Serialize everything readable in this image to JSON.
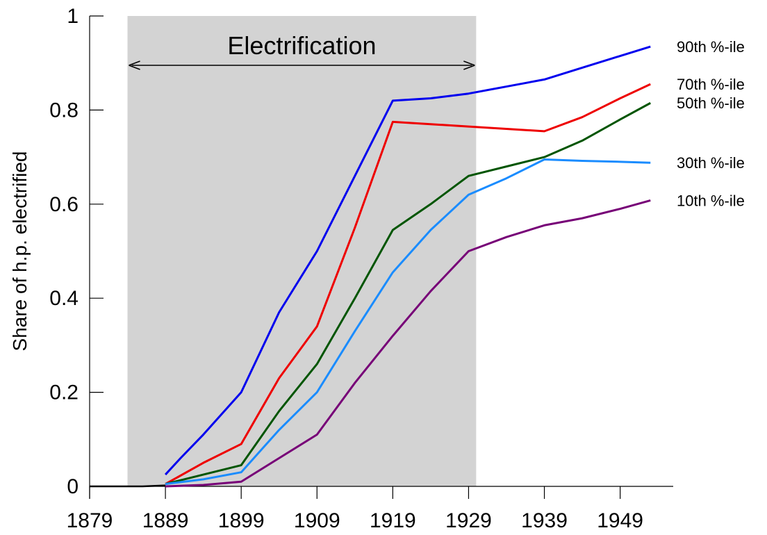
{
  "chart_data": {
    "type": "line",
    "title": "",
    "xlabel": "",
    "ylabel": "Share of h.p. electrified",
    "xlim": [
      1879,
      1956
    ],
    "ylim": [
      0,
      1
    ],
    "x_ticks": [
      1879,
      1889,
      1899,
      1909,
      1919,
      1929,
      1939,
      1949
    ],
    "y_ticks": [
      {
        "value": 0,
        "label": "0"
      },
      {
        "value": 0.2,
        "label": "0.2"
      },
      {
        "value": 0.4,
        "label": "0.4"
      },
      {
        "value": 0.6,
        "label": "0.6"
      },
      {
        "value": 0.8,
        "label": "0.8"
      },
      {
        "value": 1,
        "label": "1"
      }
    ],
    "grid": false,
    "legend": "inline-right",
    "shaded_band": {
      "x_start": 1884,
      "x_end": 1930,
      "label": "Electrification",
      "color": "#d3d3d3"
    },
    "baseline": {
      "x": [
        1879,
        1886,
        1889
      ],
      "y": [
        0,
        0,
        0.002
      ],
      "color": "#000000"
    },
    "series": [
      {
        "name": "90th %-ile",
        "color": "#0000ee",
        "x": [
          1889,
          1891,
          1894,
          1899,
          1904,
          1909,
          1914,
          1919,
          1924,
          1929,
          1934,
          1939,
          1944,
          1949,
          1953
        ],
        "y": [
          0.025,
          0.06,
          0.11,
          0.2,
          0.37,
          0.5,
          0.66,
          0.82,
          0.825,
          0.835,
          0.85,
          0.865,
          0.89,
          0.915,
          0.935
        ]
      },
      {
        "name": "70th %-ile",
        "color": "#ee0000",
        "x": [
          1889,
          1894,
          1899,
          1904,
          1909,
          1914,
          1919,
          1924,
          1929,
          1934,
          1939,
          1944,
          1949,
          1953
        ],
        "y": [
          0.005,
          0.05,
          0.09,
          0.23,
          0.34,
          0.55,
          0.775,
          0.77,
          0.765,
          0.76,
          0.755,
          0.785,
          0.825,
          0.855
        ]
      },
      {
        "name": "50th %-ile",
        "color": "#005500",
        "x": [
          1889,
          1894,
          1899,
          1904,
          1909,
          1914,
          1919,
          1924,
          1929,
          1934,
          1939,
          1944,
          1949,
          1953
        ],
        "y": [
          0.005,
          0.025,
          0.045,
          0.16,
          0.26,
          0.4,
          0.545,
          0.6,
          0.66,
          0.68,
          0.7,
          0.735,
          0.78,
          0.815
        ]
      },
      {
        "name": "30th %-ile",
        "color": "#1a8cff",
        "x": [
          1889,
          1894,
          1899,
          1904,
          1909,
          1914,
          1919,
          1924,
          1929,
          1934,
          1939,
          1944,
          1949,
          1953
        ],
        "y": [
          0.005,
          0.015,
          0.03,
          0.12,
          0.2,
          0.33,
          0.455,
          0.545,
          0.62,
          0.655,
          0.695,
          0.692,
          0.69,
          0.688
        ]
      },
      {
        "name": "10th %-ile",
        "color": "#770077",
        "x": [
          1889,
          1894,
          1899,
          1904,
          1909,
          1914,
          1919,
          1924,
          1929,
          1934,
          1939,
          1944,
          1949,
          1953
        ],
        "y": [
          0.0,
          0.003,
          0.01,
          0.06,
          0.11,
          0.22,
          0.32,
          0.415,
          0.5,
          0.53,
          0.555,
          0.57,
          0.59,
          0.608
        ]
      }
    ]
  }
}
